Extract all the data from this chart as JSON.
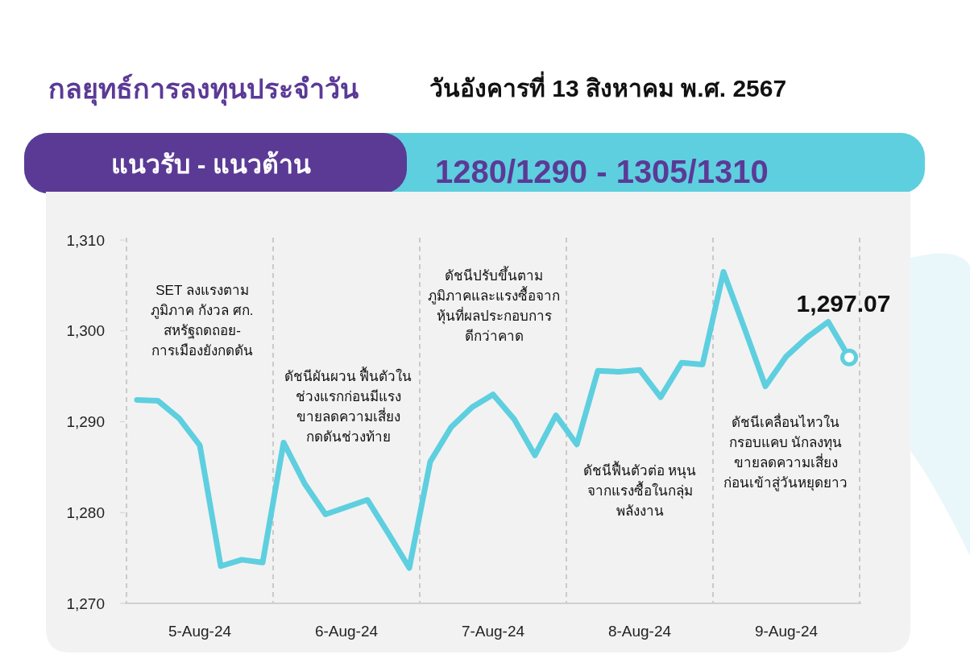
{
  "chart_data": {
    "type": "line",
    "title": "กลยุทธ์การลงทุนประจำวัน",
    "subtitle": "วันอังคารที่ 13 สิงหาคม พ.ศ. 2567",
    "annotations": [
      "แนวรับ - แนวต้าน",
      "1280/1290 - 1305/1310",
      "SET ลงแรงตาม\nภูมิภาค กังวล ศก.\nสหรัฐถดถอย-\nการเมืองยังกดดัน",
      "ดัชนีผันผวน ฟื้นตัวใน\nช่วงแรกก่อนมีแรง\nขายลดความเสี่ยง\nกดดันช่วงท้าย",
      "ดัชนีปรับขึ้นตาม\nภูมิภาคและแรงซื้อจาก\nหุ้นที่ผลประกอบการ\nดีกว่าคาด",
      "ดัชนีฟื้นตัวต่อ หนุน\nจากแรงซื้อในกลุ่ม\nพลังงาน",
      "ดัชนีเคลื่อนไหวใน\nกรอบแคบ นักลงทุน\nขายลดความเสี่ยง\nก่อนเข้าสู่วันหยุดยาว",
      "1,297.07"
    ],
    "categories": [
      null,
      null,
      null,
      "5-Aug-24",
      null,
      null,
      null,
      null,
      null,
      null,
      "6-Aug-24",
      null,
      null,
      null,
      null,
      null,
      null,
      "7-Aug-24",
      null,
      null,
      null,
      null,
      null,
      null,
      "8-Aug-24",
      null,
      null,
      null,
      null,
      null,
      null,
      "9-Aug-24",
      null,
      null,
      null
    ],
    "series": [
      {
        "color": "#5ecfdf",
        "values": [
          1292.4,
          1292.3,
          1290.4,
          1287.4,
          1274.1,
          1274.8,
          1274.5,
          1287.7,
          1283.2,
          1279.8,
          1280.6,
          1281.4,
          1277.7,
          1273.9,
          1285.6,
          1289.4,
          1291.6,
          1293.0,
          1290.3,
          1286.3,
          1290.7,
          1287.5,
          1295.6,
          1295.5,
          1295.7,
          1292.7,
          1296.5,
          1296.3,
          1306.5,
          1300.3,
          1293.9,
          1297.2,
          1299.3,
          1301.0,
          1297.07
        ]
      },
      {
        "type": "scatter",
        "color": "#5ecfdf",
        "marker": "circle",
        "values": [
          null,
          null,
          null,
          null,
          null,
          null,
          null,
          null,
          null,
          null,
          null,
          null,
          null,
          null,
          null,
          null,
          null,
          null,
          null,
          null,
          null,
          null,
          null,
          null,
          null,
          null,
          null,
          null,
          null,
          null,
          null,
          null,
          null,
          null,
          1297.07
        ]
      }
    ],
    "ylim": [
      1270,
      1310
    ],
    "yticks": [
      {
        "value": 1270,
        "label": "1,270"
      },
      {
        "value": 1280,
        "label": "1,280"
      },
      {
        "value": 1290,
        "label": "1,290"
      },
      {
        "value": 1300,
        "label": "1,300"
      },
      {
        "value": 1310,
        "label": "1,310"
      }
    ],
    "grid": false,
    "line_style": "solid"
  }
}
